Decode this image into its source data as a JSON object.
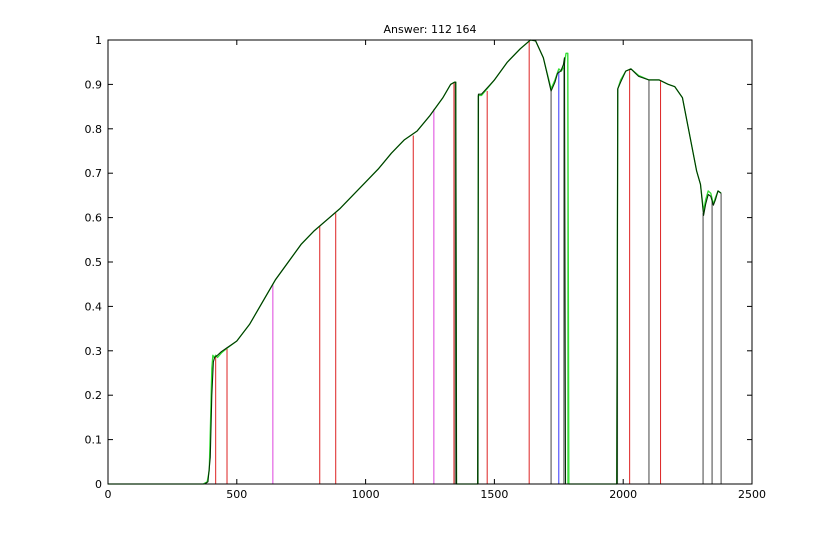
{
  "chart_data": {
    "type": "line",
    "title": "Answer: 112  164",
    "xlabel": "",
    "ylabel": "",
    "xlim": [
      0,
      2500
    ],
    "ylim": [
      0,
      1
    ],
    "xticks": [
      0,
      500,
      1000,
      1500,
      2000,
      2500
    ],
    "yticks": [
      0,
      0.1,
      0.2,
      0.3,
      0.4,
      0.5,
      0.6,
      0.7,
      0.8,
      0.9,
      1
    ],
    "xtick_labels": [
      "0",
      "500",
      "1000",
      "1500",
      "2000",
      "2500"
    ],
    "ytick_labels": [
      "0",
      "0.1",
      "0.2",
      "0.3",
      "0.4",
      "0.5",
      "0.6",
      "0.7",
      "0.8",
      "0.9",
      "1"
    ],
    "grid": false,
    "colors": {
      "background": "#ffffff",
      "axes": "#000000",
      "series_green": "#33dd33",
      "series_dark": "#003300",
      "red": "#dd2222",
      "magenta": "#dd44dd",
      "blue": "#3333ff",
      "gray": "#444444"
    },
    "series": [
      {
        "color": "#33dd33",
        "segments": [
          [
            [
              0,
              0
            ],
            [
              370,
              0
            ],
            [
              385,
              0.005
            ],
            [
              393,
              0.03
            ],
            [
              398,
              0.14
            ],
            [
              403,
              0.26
            ],
            [
              407,
              0.29
            ],
            [
              412,
              0.285
            ],
            [
              418,
              0.29
            ],
            [
              425,
              0.285
            ],
            [
              440,
              0.295
            ],
            [
              460,
              0.305
            ],
            [
              500,
              0.322
            ],
            [
              550,
              0.36
            ],
            [
              600,
              0.41
            ],
            [
              650,
              0.46
            ],
            [
              700,
              0.5
            ],
            [
              750,
              0.54
            ],
            [
              800,
              0.57
            ],
            [
              850,
              0.595
            ],
            [
              900,
              0.62
            ],
            [
              950,
              0.65
            ],
            [
              1000,
              0.68
            ],
            [
              1050,
              0.71
            ],
            [
              1100,
              0.745
            ],
            [
              1150,
              0.775
            ],
            [
              1200,
              0.795
            ],
            [
              1250,
              0.83
            ],
            [
              1300,
              0.87
            ],
            [
              1330,
              0.9
            ],
            [
              1345,
              0.905
            ],
            [
              1350,
              0.905
            ],
            [
              1353,
              0
            ],
            [
              1435,
              0
            ],
            [
              1438,
              0.875
            ],
            [
              1450,
              0.875
            ],
            [
              1500,
              0.91
            ],
            [
              1550,
              0.95
            ],
            [
              1600,
              0.98
            ],
            [
              1640,
              1.0
            ],
            [
              1660,
              0.998
            ],
            [
              1690,
              0.96
            ],
            [
              1720,
              0.89
            ],
            [
              1735,
              0.91
            ],
            [
              1750,
              0.935
            ],
            [
              1760,
              0.93
            ],
            [
              1770,
              0.94
            ],
            [
              1778,
              0.97
            ],
            [
              1785,
              0.97
            ],
            [
              1789,
              0
            ],
            [
              1975,
              0
            ],
            [
              1979,
              0.89
            ],
            [
              1990,
              0.91
            ],
            [
              2010,
              0.93
            ],
            [
              2030,
              0.935
            ],
            [
              2060,
              0.92
            ],
            [
              2100,
              0.91
            ],
            [
              2140,
              0.91
            ],
            [
              2175,
              0.9
            ],
            [
              2200,
              0.895
            ],
            [
              2230,
              0.87
            ],
            [
              2260,
              0.78
            ],
            [
              2285,
              0.705
            ],
            [
              2300,
              0.675
            ],
            [
              2312,
              0.615
            ],
            [
              2320,
              0.64
            ],
            [
              2330,
              0.66
            ],
            [
              2340,
              0.655
            ],
            [
              2350,
              0.63
            ],
            [
              2358,
              0.645
            ],
            [
              2368,
              0.66
            ],
            [
              2380,
              0.655
            ]
          ]
        ]
      },
      {
        "color": "#003300",
        "segments": [
          [
            [
              0,
              0
            ],
            [
              375,
              0
            ],
            [
              388,
              0.005
            ],
            [
              397,
              0.06
            ],
            [
              403,
              0.2
            ],
            [
              409,
              0.275
            ],
            [
              414,
              0.285
            ],
            [
              425,
              0.29
            ],
            [
              440,
              0.298
            ],
            [
              460,
              0.306
            ],
            [
              500,
              0.322
            ],
            [
              550,
              0.36
            ],
            [
              600,
              0.41
            ],
            [
              650,
              0.46
            ],
            [
              700,
              0.5
            ],
            [
              750,
              0.54
            ],
            [
              800,
              0.57
            ],
            [
              850,
              0.595
            ],
            [
              900,
              0.62
            ],
            [
              950,
              0.65
            ],
            [
              1000,
              0.68
            ],
            [
              1050,
              0.71
            ],
            [
              1100,
              0.745
            ],
            [
              1150,
              0.775
            ],
            [
              1200,
              0.795
            ],
            [
              1250,
              0.83
            ],
            [
              1300,
              0.87
            ],
            [
              1330,
              0.9
            ],
            [
              1345,
              0.905
            ],
            [
              1350,
              0.905
            ],
            [
              1353,
              0
            ],
            [
              1435,
              0
            ],
            [
              1438,
              0.878
            ],
            [
              1450,
              0.878
            ],
            [
              1500,
              0.91
            ],
            [
              1550,
              0.95
            ],
            [
              1600,
              0.98
            ],
            [
              1640,
              1.0
            ],
            [
              1660,
              0.998
            ],
            [
              1690,
              0.96
            ],
            [
              1720,
              0.885
            ],
            [
              1735,
              0.905
            ],
            [
              1745,
              0.925
            ],
            [
              1758,
              0.93
            ],
            [
              1768,
              0.945
            ],
            [
              1772,
              0.96
            ],
            [
              1776,
              0
            ],
            [
              1975,
              0
            ],
            [
              1979,
              0.89
            ],
            [
              1990,
              0.905
            ],
            [
              2010,
              0.93
            ],
            [
              2030,
              0.935
            ],
            [
              2060,
              0.918
            ],
            [
              2100,
              0.91
            ],
            [
              2140,
              0.91
            ],
            [
              2175,
              0.9
            ],
            [
              2200,
              0.895
            ],
            [
              2230,
              0.87
            ],
            [
              2260,
              0.78
            ],
            [
              2285,
              0.705
            ],
            [
              2300,
              0.675
            ],
            [
              2312,
              0.605
            ],
            [
              2320,
              0.63
            ],
            [
              2330,
              0.652
            ],
            [
              2340,
              0.648
            ],
            [
              2350,
              0.628
            ],
            [
              2358,
              0.64
            ],
            [
              2368,
              0.66
            ],
            [
              2380,
              0.655
            ]
          ]
        ]
      }
    ],
    "vlines": [
      {
        "x": 418,
        "y": 0.29,
        "color": "#dd2222"
      },
      {
        "x": 462,
        "y": 0.305,
        "color": "#dd2222"
      },
      {
        "x": 640,
        "y": 0.45,
        "color": "#dd44dd"
      },
      {
        "x": 822,
        "y": 0.58,
        "color": "#dd2222"
      },
      {
        "x": 884,
        "y": 0.61,
        "color": "#dd2222"
      },
      {
        "x": 1185,
        "y": 0.785,
        "color": "#dd2222"
      },
      {
        "x": 1265,
        "y": 0.845,
        "color": "#dd44dd"
      },
      {
        "x": 1343,
        "y": 0.905,
        "color": "#dd2222"
      },
      {
        "x": 1348,
        "y": 0.905,
        "color": "#444444"
      },
      {
        "x": 1437,
        "y": 0.875,
        "color": "#444444"
      },
      {
        "x": 1472,
        "y": 0.885,
        "color": "#dd2222"
      },
      {
        "x": 1635,
        "y": 1.0,
        "color": "#dd2222"
      },
      {
        "x": 1720,
        "y": 0.885,
        "color": "#444444"
      },
      {
        "x": 1750,
        "y": 0.93,
        "color": "#3333ff"
      },
      {
        "x": 1770,
        "y": 0.945,
        "color": "#444444"
      },
      {
        "x": 1785,
        "y": 0.97,
        "color": "#33dd33"
      },
      {
        "x": 1978,
        "y": 0.89,
        "color": "#444444"
      },
      {
        "x": 2025,
        "y": 0.935,
        "color": "#dd2222"
      },
      {
        "x": 2100,
        "y": 0.91,
        "color": "#444444"
      },
      {
        "x": 2145,
        "y": 0.91,
        "color": "#dd2222"
      },
      {
        "x": 2310,
        "y": 0.61,
        "color": "#444444"
      },
      {
        "x": 2345,
        "y": 0.645,
        "color": "#444444"
      },
      {
        "x": 2380,
        "y": 0.655,
        "color": "#444444"
      }
    ]
  }
}
